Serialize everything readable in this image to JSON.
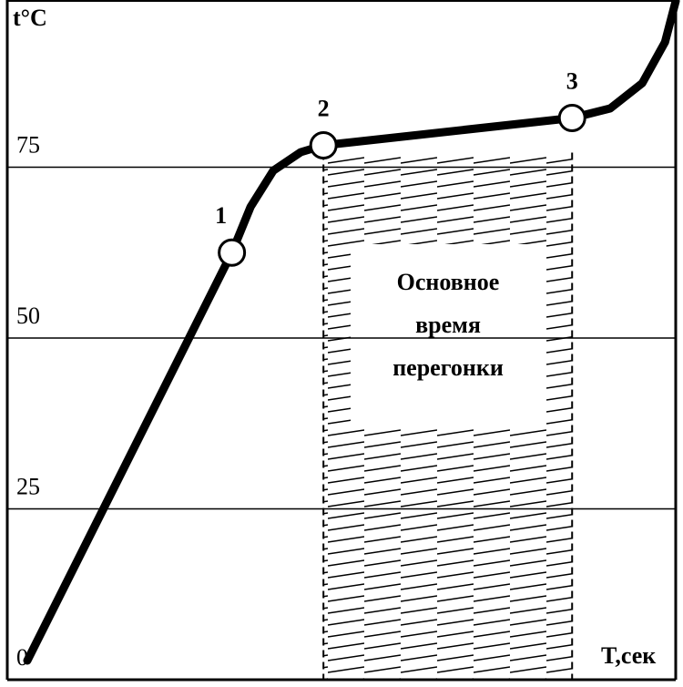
{
  "chart_data": {
    "type": "line",
    "ylabel": "t°C",
    "xlabel": "T,сек",
    "x": [
      3,
      33.6,
      36.4,
      39.8,
      43.9,
      47.3,
      84.5,
      90.2,
      95,
      98.4,
      100
    ],
    "values": [
      2.8,
      62.5,
      69.2,
      74.5,
      77.2,
      78.2,
      82.2,
      83.6,
      87.3,
      93.3,
      99.3
    ],
    "color": "#000000",
    "markers": {
      "x": [
        33.6,
        47.3,
        84.5
      ],
      "values": [
        62.5,
        78.2,
        82.2
      ],
      "labels": [
        "1",
        "2",
        "3"
      ]
    },
    "shaded_region": {
      "x": [
        47.3,
        84.5
      ],
      "annotation": [
        "Основное",
        "время",
        "перегонки"
      ]
    },
    "xlim": [
      0,
      100
    ],
    "ylim": [
      0,
      100
    ],
    "yticks": [
      0,
      25,
      50,
      75
    ],
    "grid": true
  }
}
